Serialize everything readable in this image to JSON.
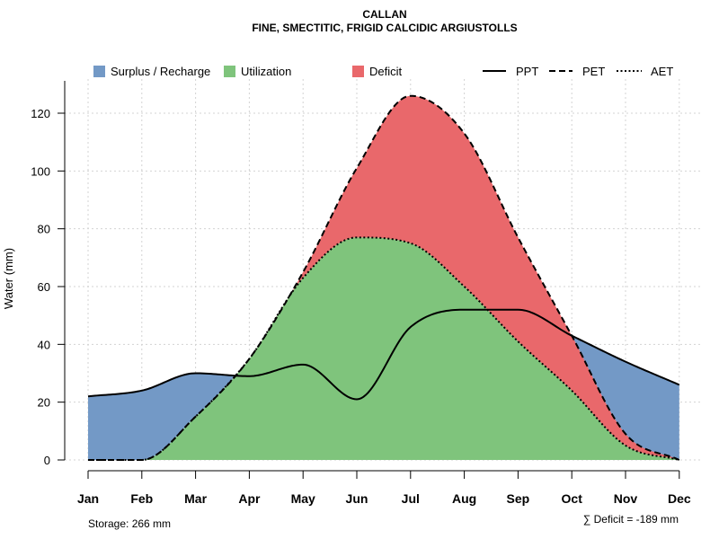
{
  "chart_data": {
    "type": "area",
    "title": "CALLAN",
    "subtitle": "FINE, SMECTITIC, FRIGID CALCIDIC ARGIUSTOLLS",
    "ylabel": "Water (mm)",
    "xlabel": "",
    "ylim": [
      0,
      130
    ],
    "yticks": [
      0,
      20,
      40,
      60,
      80,
      100,
      120
    ],
    "categories": [
      "Jan",
      "Feb",
      "Mar",
      "Apr",
      "May",
      "Jun",
      "Jul",
      "Aug",
      "Sep",
      "Oct",
      "Nov",
      "Dec"
    ],
    "grid": true,
    "legend_position": "top",
    "legend": {
      "surplus": "Surplus / Recharge",
      "utilization": "Utilization",
      "deficit": "Deficit",
      "ppt": "PPT",
      "pet": "PET",
      "aet": "AET"
    },
    "series": [
      {
        "name": "PPT",
        "style": "solid",
        "values": [
          22,
          24,
          30,
          29,
          33,
          21,
          46,
          52,
          52,
          43,
          34,
          26
        ]
      },
      {
        "name": "PET",
        "style": "dashed",
        "values": [
          0,
          0,
          15,
          35,
          65,
          101,
          126,
          113,
          77,
          43,
          9,
          0
        ]
      },
      {
        "name": "AET",
        "style": "dotted",
        "values": [
          0,
          0,
          15,
          35,
          63,
          77,
          75,
          60,
          41,
          24,
          5,
          0
        ]
      }
    ],
    "colors": {
      "surplus": "#7399c6",
      "utilization": "#7fc47c",
      "deficit": "#e9686b",
      "line": "#000000"
    },
    "annotations": {
      "storage": "Storage: 266 mm",
      "deficit_sum": "∑ Deficit = -189 mm"
    }
  }
}
